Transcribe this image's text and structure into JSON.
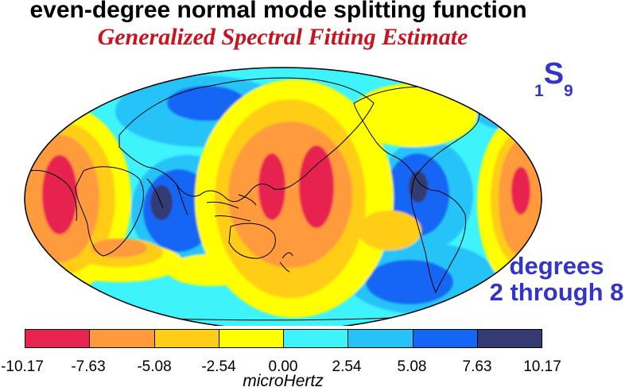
{
  "title": "even-degree normal mode splitting function",
  "subtitle": "Generalized Spectral Fitting Estimate",
  "mode": {
    "prefix": "1",
    "letter": "S",
    "suffix": "9"
  },
  "degrees": {
    "line1": "degrees",
    "line2": "2 through 8"
  },
  "colorbar": {
    "ticks": [
      "-10.17",
      "-7.63",
      "-5.08",
      "-2.54",
      "0.00",
      "2.54",
      "5.08",
      "7.63",
      "10.17"
    ],
    "colors": [
      "#e8234f",
      "#ff9a3c",
      "#ffcc16",
      "#ffff00",
      "#3ff3fb",
      "#27c3f8",
      "#1466f5",
      "#333b72"
    ],
    "unit": "microHertz"
  },
  "map": {
    "projection": "Mollweide",
    "coastline_color": "#000000"
  }
}
